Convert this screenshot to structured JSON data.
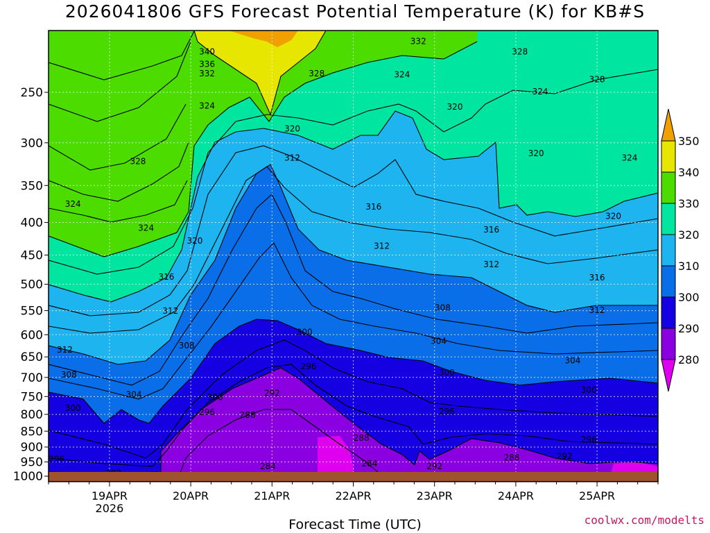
{
  "title": "2026041806 GFS Forecast Potential Temperature (K) for KB#S",
  "credit": "coolwx.com/modelts",
  "chart_data": {
    "type": "contour",
    "xlabel": "Forecast Time (UTC)",
    "ylabel": "",
    "x_ticks": [
      "19APR",
      "20APR",
      "21APR",
      "22APR",
      "23APR",
      "24APR",
      "25APR"
    ],
    "x_year_label": "2026",
    "x_range_days": [
      -0.75,
      6.75
    ],
    "y_ticks": [
      250,
      300,
      350,
      400,
      450,
      500,
      550,
      600,
      650,
      700,
      750,
      800,
      850,
      900,
      950,
      1000
    ],
    "y_range_hpa": [
      200,
      1020
    ],
    "y_scale": "log",
    "grid": true,
    "colorbar": {
      "levels": [
        280,
        290,
        300,
        310,
        320,
        330,
        340,
        350
      ],
      "colors": [
        "#e000f0",
        "#8a00e0",
        "#1400e0",
        "#0a6ee8",
        "#1eb4f0",
        "#00e6a0",
        "#4cdc00",
        "#e6e600",
        "#f0a000"
      ],
      "placement": "right"
    },
    "contour_labels": [
      {
        "value": "340",
        "t": 1.2,
        "p": 218
      },
      {
        "value": "336",
        "t": 1.2,
        "p": 228
      },
      {
        "value": "332",
        "t": 1.2,
        "p": 236
      },
      {
        "value": "332",
        "t": 3.8,
        "p": 210
      },
      {
        "value": "328",
        "t": 2.55,
        "p": 236
      },
      {
        "value": "328",
        "t": 5.05,
        "p": 218
      },
      {
        "value": "328",
        "t": 6.0,
        "p": 241
      },
      {
        "value": "324",
        "t": 1.2,
        "p": 265
      },
      {
        "value": "324",
        "t": 3.6,
        "p": 237
      },
      {
        "value": "324",
        "t": 5.3,
        "p": 252
      },
      {
        "value": "324",
        "t": 6.4,
        "p": 320
      },
      {
        "value": "320",
        "t": 2.25,
        "p": 288
      },
      {
        "value": "320",
        "t": 4.25,
        "p": 266
      },
      {
        "value": "320",
        "t": 5.25,
        "p": 315
      },
      {
        "value": "320",
        "t": 6.2,
        "p": 395
      },
      {
        "value": "328",
        "t": 0.35,
        "p": 324
      },
      {
        "value": "324",
        "t": -0.45,
        "p": 378
      },
      {
        "value": "324",
        "t": 0.45,
        "p": 412
      },
      {
        "value": "320",
        "t": 1.05,
        "p": 432
      },
      {
        "value": "316",
        "t": 0.7,
        "p": 492
      },
      {
        "value": "312",
        "t": 0.75,
        "p": 556
      },
      {
        "value": "312",
        "t": 2.25,
        "p": 320
      },
      {
        "value": "316",
        "t": 3.25,
        "p": 382
      },
      {
        "value": "316",
        "t": 4.7,
        "p": 415
      },
      {
        "value": "312",
        "t": 3.35,
        "p": 440
      },
      {
        "value": "312",
        "t": 4.7,
        "p": 470
      },
      {
        "value": "316",
        "t": 6.0,
        "p": 493
      },
      {
        "value": "312",
        "t": 6.0,
        "p": 555
      },
      {
        "value": "308",
        "t": 4.1,
        "p": 550
      },
      {
        "value": "308",
        "t": 0.95,
        "p": 630
      },
      {
        "value": "312",
        "t": -0.55,
        "p": 640
      },
      {
        "value": "308",
        "t": -0.5,
        "p": 700
      },
      {
        "value": "304",
        "t": 0.3,
        "p": 752
      },
      {
        "value": "300",
        "t": 1.3,
        "p": 760
      },
      {
        "value": "300",
        "t": -0.45,
        "p": 790
      },
      {
        "value": "296",
        "t": 1.2,
        "p": 802
      },
      {
        "value": "292",
        "t": 2.0,
        "p": 748
      },
      {
        "value": "288",
        "t": 1.7,
        "p": 810
      },
      {
        "value": "300",
        "t": 2.4,
        "p": 600
      },
      {
        "value": "304",
        "t": 4.05,
        "p": 620
      },
      {
        "value": "300",
        "t": 4.15,
        "p": 695
      },
      {
        "value": "304",
        "t": 5.7,
        "p": 665
      },
      {
        "value": "300",
        "t": 5.9,
        "p": 740
      },
      {
        "value": "296",
        "t": 2.45,
        "p": 680
      },
      {
        "value": "296",
        "t": 4.15,
        "p": 800
      },
      {
        "value": "296",
        "t": 5.9,
        "p": 885
      },
      {
        "value": "292",
        "t": 5.6,
        "p": 940
      },
      {
        "value": "288",
        "t": 3.1,
        "p": 880
      },
      {
        "value": "288",
        "t": 4.95,
        "p": 945
      },
      {
        "value": "284",
        "t": 1.95,
        "p": 975
      },
      {
        "value": "284",
        "t": 3.2,
        "p": 965
      },
      {
        "value": "292",
        "t": 4.0,
        "p": 975
      },
      {
        "value": "296",
        "t": -0.65,
        "p": 950
      },
      {
        "value": "292",
        "t": 0.05,
        "p": 1000
      }
    ]
  }
}
